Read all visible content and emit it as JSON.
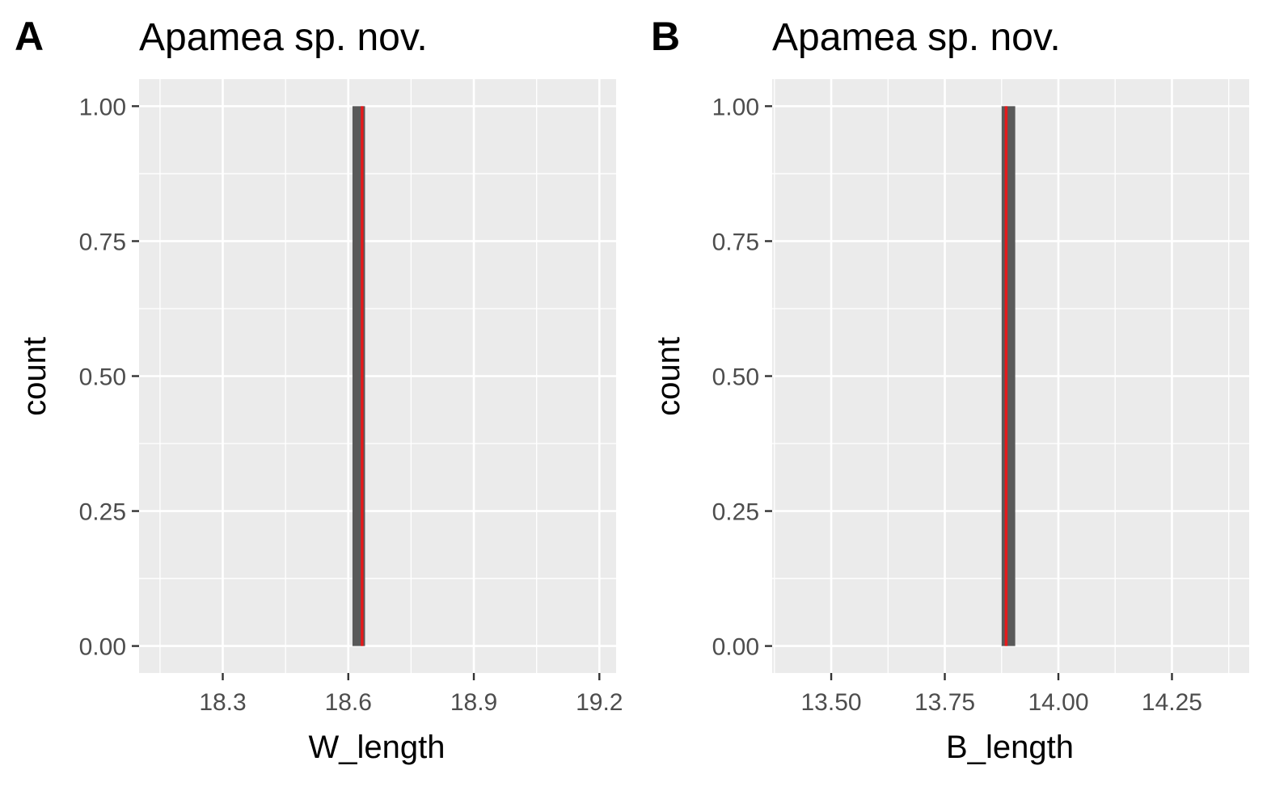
{
  "chart_data": [
    {
      "panel_label": "A",
      "type": "bar",
      "title": "Apamea sp. nov.",
      "xlabel": "W_length",
      "ylabel": "count",
      "xlim": [
        18.1,
        19.24
      ],
      "ylim": [
        -0.05,
        1.05
      ],
      "xticks": [
        "18.3",
        "18.6",
        "18.9",
        "19.2"
      ],
      "xtick_values": [
        18.3,
        18.6,
        18.9,
        19.2
      ],
      "yticks": [
        "0.00",
        "0.25",
        "0.50",
        "0.75",
        "1.00"
      ],
      "ytick_values": [
        0.0,
        0.25,
        0.5,
        0.75,
        1.0
      ],
      "bars": [
        {
          "x_min": 18.61,
          "x_max": 18.64,
          "count": 1
        }
      ],
      "reference_line": {
        "x": 18.633,
        "color": "#e41a1c"
      },
      "grid": true,
      "legend": "none"
    },
    {
      "panel_label": "B",
      "type": "bar",
      "title": "Apamea sp. nov.",
      "xlabel": "B_length",
      "ylabel": "count",
      "xlim": [
        13.37,
        14.42
      ],
      "ylim": [
        -0.05,
        1.05
      ],
      "xticks": [
        "13.50",
        "13.75",
        "14.00",
        "14.25"
      ],
      "xtick_values": [
        13.5,
        13.75,
        14.0,
        14.25
      ],
      "yticks": [
        "0.00",
        "0.25",
        "0.50",
        "0.75",
        "1.00"
      ],
      "ytick_values": [
        0.0,
        0.25,
        0.5,
        0.75,
        1.0
      ],
      "bars": [
        {
          "x_min": 13.875,
          "x_max": 13.905,
          "count": 1
        }
      ],
      "reference_line": {
        "x": 13.885,
        "color": "#e41a1c"
      },
      "grid": true,
      "legend": "none"
    }
  ],
  "colors": {
    "panel_background": "#ebebeb",
    "grid": "#ffffff",
    "bar_fill": "#595959",
    "axis_text": "#4d4d4d",
    "reference_line": "#e41a1c"
  }
}
